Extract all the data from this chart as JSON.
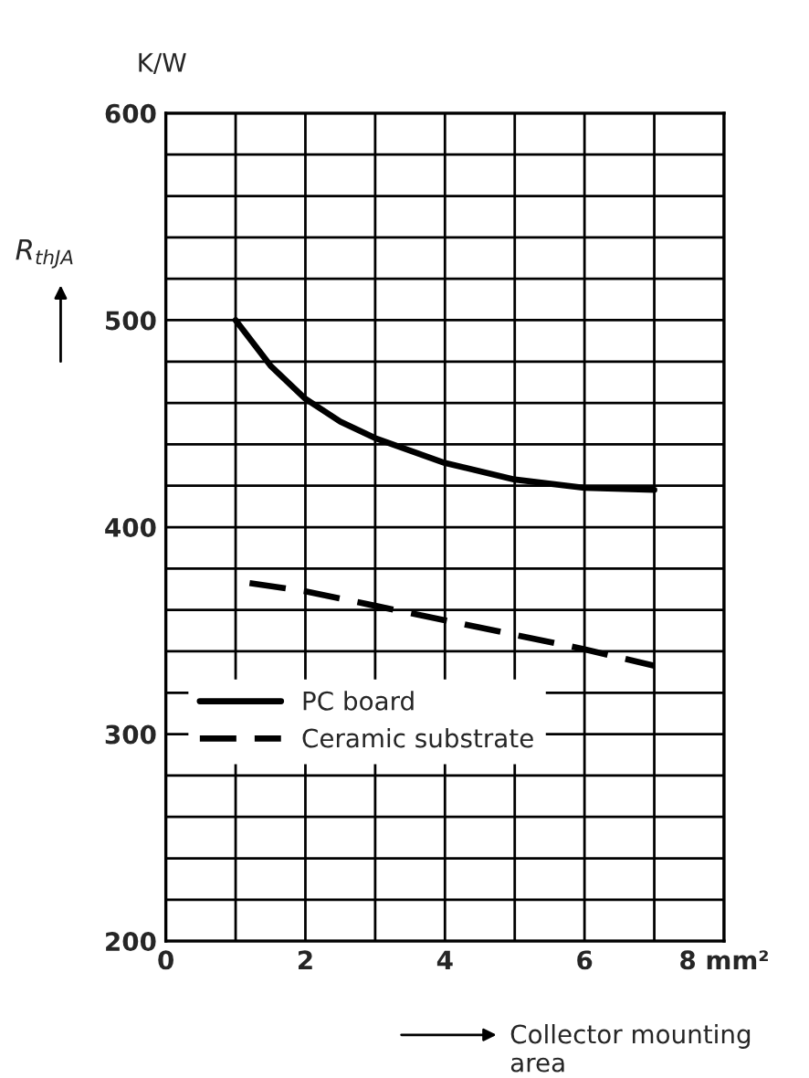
{
  "chart_data": {
    "type": "line",
    "series": [
      {
        "name": "PC board",
        "color": "#000000",
        "line_style": "solid",
        "x": [
          1,
          1.5,
          2,
          2.5,
          3,
          4,
          5,
          6,
          7
        ],
        "values": [
          500,
          478,
          462,
          451,
          443,
          431,
          423,
          419,
          418
        ]
      },
      {
        "name": "Ceramic substrate",
        "color": "#000000",
        "line_style": "dashed",
        "x": [
          1.2,
          2,
          3,
          4,
          5,
          6,
          7
        ],
        "values": [
          373,
          369,
          362,
          355,
          348,
          341,
          333
        ]
      }
    ],
    "ylabel": "R$_{thJA}$",
    "xlabel": "Collector mounting area",
    "annotations": [
      "K/W"
    ],
    "xlim": [
      0,
      8
    ],
    "ylim": [
      200,
      600
    ],
    "xticks": [
      0,
      {
        "value": 1,
        "label": null
      },
      2,
      {
        "value": 3,
        "label": null
      },
      4,
      {
        "value": 5,
        "label": null
      },
      6,
      {
        "value": 7,
        "label": null
      },
      {
        "value": 8,
        "label": "8 mm²"
      }
    ],
    "yticks": [
      200,
      {
        "value": 220,
        "label": null
      },
      {
        "value": 240,
        "label": null
      },
      {
        "value": 260,
        "label": null
      },
      {
        "value": 280,
        "label": null
      },
      300,
      {
        "value": 320,
        "label": null
      },
      {
        "value": 340,
        "label": null
      },
      {
        "value": 360,
        "label": null
      },
      {
        "value": 380,
        "label": null
      },
      400,
      {
        "value": 420,
        "label": null
      },
      {
        "value": 440,
        "label": null
      },
      {
        "value": 460,
        "label": null
      },
      {
        "value": 480,
        "label": null
      },
      500,
      {
        "value": 520,
        "label": null
      },
      {
        "value": 540,
        "label": null
      },
      {
        "value": 560,
        "label": null
      },
      {
        "value": 580,
        "label": null
      },
      600
    ],
    "grid": true,
    "legend": "bottom left"
  }
}
